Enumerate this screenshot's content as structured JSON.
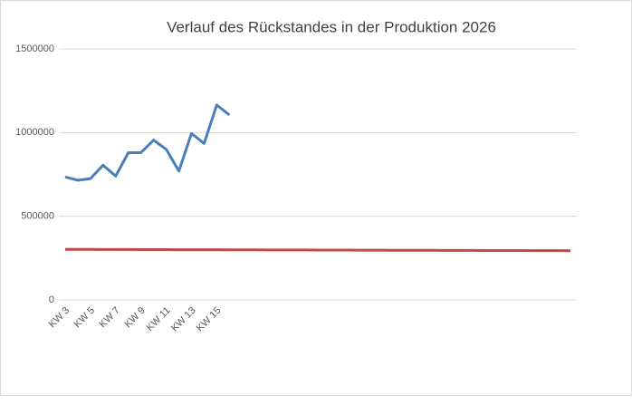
{
  "chart_data": {
    "type": "line",
    "title": "Verlauf des Rückstandes in der Produktion 2026",
    "categories": [
      "KW 3",
      null,
      "KW 5",
      null,
      "KW 7",
      null,
      "KW 9",
      null,
      "KW 11",
      null,
      "KW 13",
      null,
      "KW 15",
      null,
      null,
      null,
      null,
      null,
      null,
      null,
      null,
      null,
      null,
      null,
      null,
      null,
      null,
      null,
      null,
      null,
      null,
      null,
      null,
      null,
      null,
      null,
      null,
      null,
      null,
      null,
      null
    ],
    "series": [
      {
        "color": "#4a7ebb",
        "values": [
          735000,
          715000,
          725000,
          805000,
          740000,
          880000,
          880000,
          955000,
          900000,
          770000,
          995000,
          935000,
          1165000,
          1105000,
          null,
          null,
          null,
          null,
          null,
          null,
          null,
          null,
          null,
          null,
          null,
          null,
          null,
          null,
          null,
          null,
          null,
          null,
          null,
          null,
          null,
          null,
          null,
          null,
          null,
          null,
          null
        ]
      },
      {
        "color": "#be4b48",
        "values": [
          302000,
          301800,
          301600,
          301400,
          301200,
          301000,
          300800,
          300600,
          300400,
          300200,
          300000,
          299800,
          299600,
          299400,
          299200,
          299000,
          298800,
          298600,
          298400,
          298200,
          298000,
          297800,
          297600,
          297400,
          297200,
          297000,
          296800,
          296600,
          296400,
          296200,
          296000,
          295800,
          295600,
          295400,
          295200,
          295000,
          294800,
          294600,
          294400,
          294200,
          294000
        ]
      }
    ],
    "ylim": [
      0,
      1500000
    ],
    "yticks": [
      0,
      500000,
      1000000,
      1500000
    ],
    "grid": true
  }
}
